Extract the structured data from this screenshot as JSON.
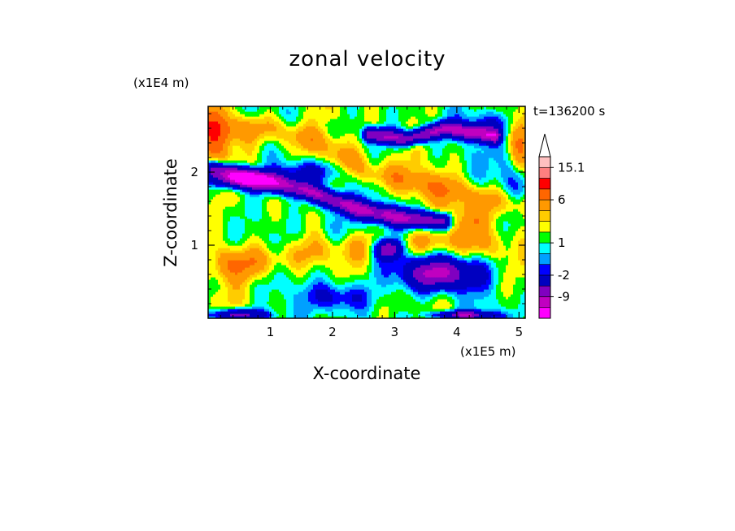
{
  "chart_data": {
    "type": "heatmap",
    "title": "zonal velocity",
    "xlabel": "X-coordinate",
    "ylabel": "Z-coordinate",
    "x_unit": "(x1E5 m)",
    "y_unit": "(x1E4 m)",
    "time_label": "t=136200 s",
    "xlim": [
      0,
      5.1
    ],
    "ylim": [
      0,
      2.9
    ],
    "x_ticks": [
      "1",
      "2",
      "3",
      "4",
      "5"
    ],
    "y_ticks": [
      "1",
      "2"
    ],
    "colorbar": {
      "tick_labels": [
        "15.1",
        "6",
        "1",
        "-2",
        "-9"
      ],
      "levels": [
        -15,
        -12,
        -9,
        -6,
        -2,
        -1,
        0,
        1,
        2,
        3,
        4,
        6,
        9,
        12,
        15.1
      ],
      "colors": [
        "#ff00ff",
        "#c000c0",
        "#8000c0",
        "#0000c0",
        "#0000ff",
        "#00a0ff",
        "#00ffff",
        "#00ff00",
        "#ffff00",
        "#ffcc00",
        "#ff9900",
        "#ff6600",
        "#ff0000",
        "#ff8080",
        "#ffc0c0"
      ],
      "extend": "max"
    },
    "field_features": [
      {
        "type": "band",
        "value": 5,
        "width": 0.18,
        "points": [
          [
            0.1,
            2.6
          ],
          [
            1.0,
            2.6
          ],
          [
            1.8,
            2.4
          ],
          [
            2.6,
            2.0
          ],
          [
            3.4,
            1.85
          ],
          [
            4.2,
            1.7
          ],
          [
            5.1,
            1.55
          ]
        ]
      },
      {
        "type": "band",
        "value": -9,
        "width": 0.12,
        "points": [
          [
            0.1,
            2.05
          ],
          [
            0.8,
            1.9
          ],
          [
            1.6,
            1.75
          ],
          [
            2.4,
            1.5
          ],
          [
            3.1,
            1.38
          ],
          [
            3.8,
            1.33
          ]
        ]
      },
      {
        "type": "band",
        "value": -9,
        "width": 0.1,
        "points": [
          [
            2.6,
            2.52
          ],
          [
            3.2,
            2.46
          ],
          [
            3.8,
            2.6
          ],
          [
            4.6,
            2.5
          ]
        ]
      },
      {
        "type": "band",
        "value": 4,
        "width": 0.2,
        "points": [
          [
            0.3,
            0.8
          ],
          [
            1.2,
            0.85
          ],
          [
            2.0,
            0.95
          ],
          [
            2.8,
            1.0
          ],
          [
            3.6,
            1.05
          ],
          [
            4.6,
            1.0
          ]
        ]
      },
      {
        "type": "blob",
        "value": -10,
        "x": 3.7,
        "y": 0.62,
        "rx": 0.6,
        "ry": 0.22
      },
      {
        "type": "blob",
        "value": -10,
        "x": 2.9,
        "y": 0.95,
        "rx": 0.22,
        "ry": 0.14
      },
      {
        "type": "blob",
        "value": -9,
        "x": 0.55,
        "y": 1.9,
        "rx": 0.5,
        "ry": 0.12
      },
      {
        "type": "blob",
        "value": -3,
        "x": 1.55,
        "y": 2.0,
        "rx": 0.5,
        "ry": 0.15
      },
      {
        "type": "blob",
        "value": -2,
        "x": 4.5,
        "y": 2.65,
        "rx": 0.4,
        "ry": 0.18
      },
      {
        "type": "blob",
        "value": -2,
        "x": 4.9,
        "y": 1.9,
        "rx": 0.25,
        "ry": 0.5
      },
      {
        "type": "blob",
        "value": 6,
        "x": 0.12,
        "y": 2.4,
        "rx": 0.22,
        "ry": 0.55
      },
      {
        "type": "blob",
        "value": 6,
        "x": 5.0,
        "y": 2.3,
        "rx": 0.18,
        "ry": 0.4
      },
      {
        "type": "blob",
        "value": 5,
        "x": 4.2,
        "y": 1.35,
        "rx": 0.4,
        "ry": 0.22
      },
      {
        "type": "blob",
        "value": 4,
        "x": 0.6,
        "y": 0.7,
        "rx": 0.5,
        "ry": 0.2
      },
      {
        "type": "blob",
        "value": -3,
        "x": 2.1,
        "y": 0.3,
        "rx": 0.5,
        "ry": 0.2
      },
      {
        "type": "blob",
        "value": -8,
        "x": 0.5,
        "y": 0.05,
        "rx": 0.45,
        "ry": 0.08
      },
      {
        "type": "blob",
        "value": -8,
        "x": 4.1,
        "y": 0.05,
        "rx": 0.5,
        "ry": 0.06
      },
      {
        "type": "blob",
        "value": -1,
        "x": 2.0,
        "y": 1.2,
        "rx": 0.3,
        "ry": 0.4
      }
    ]
  }
}
